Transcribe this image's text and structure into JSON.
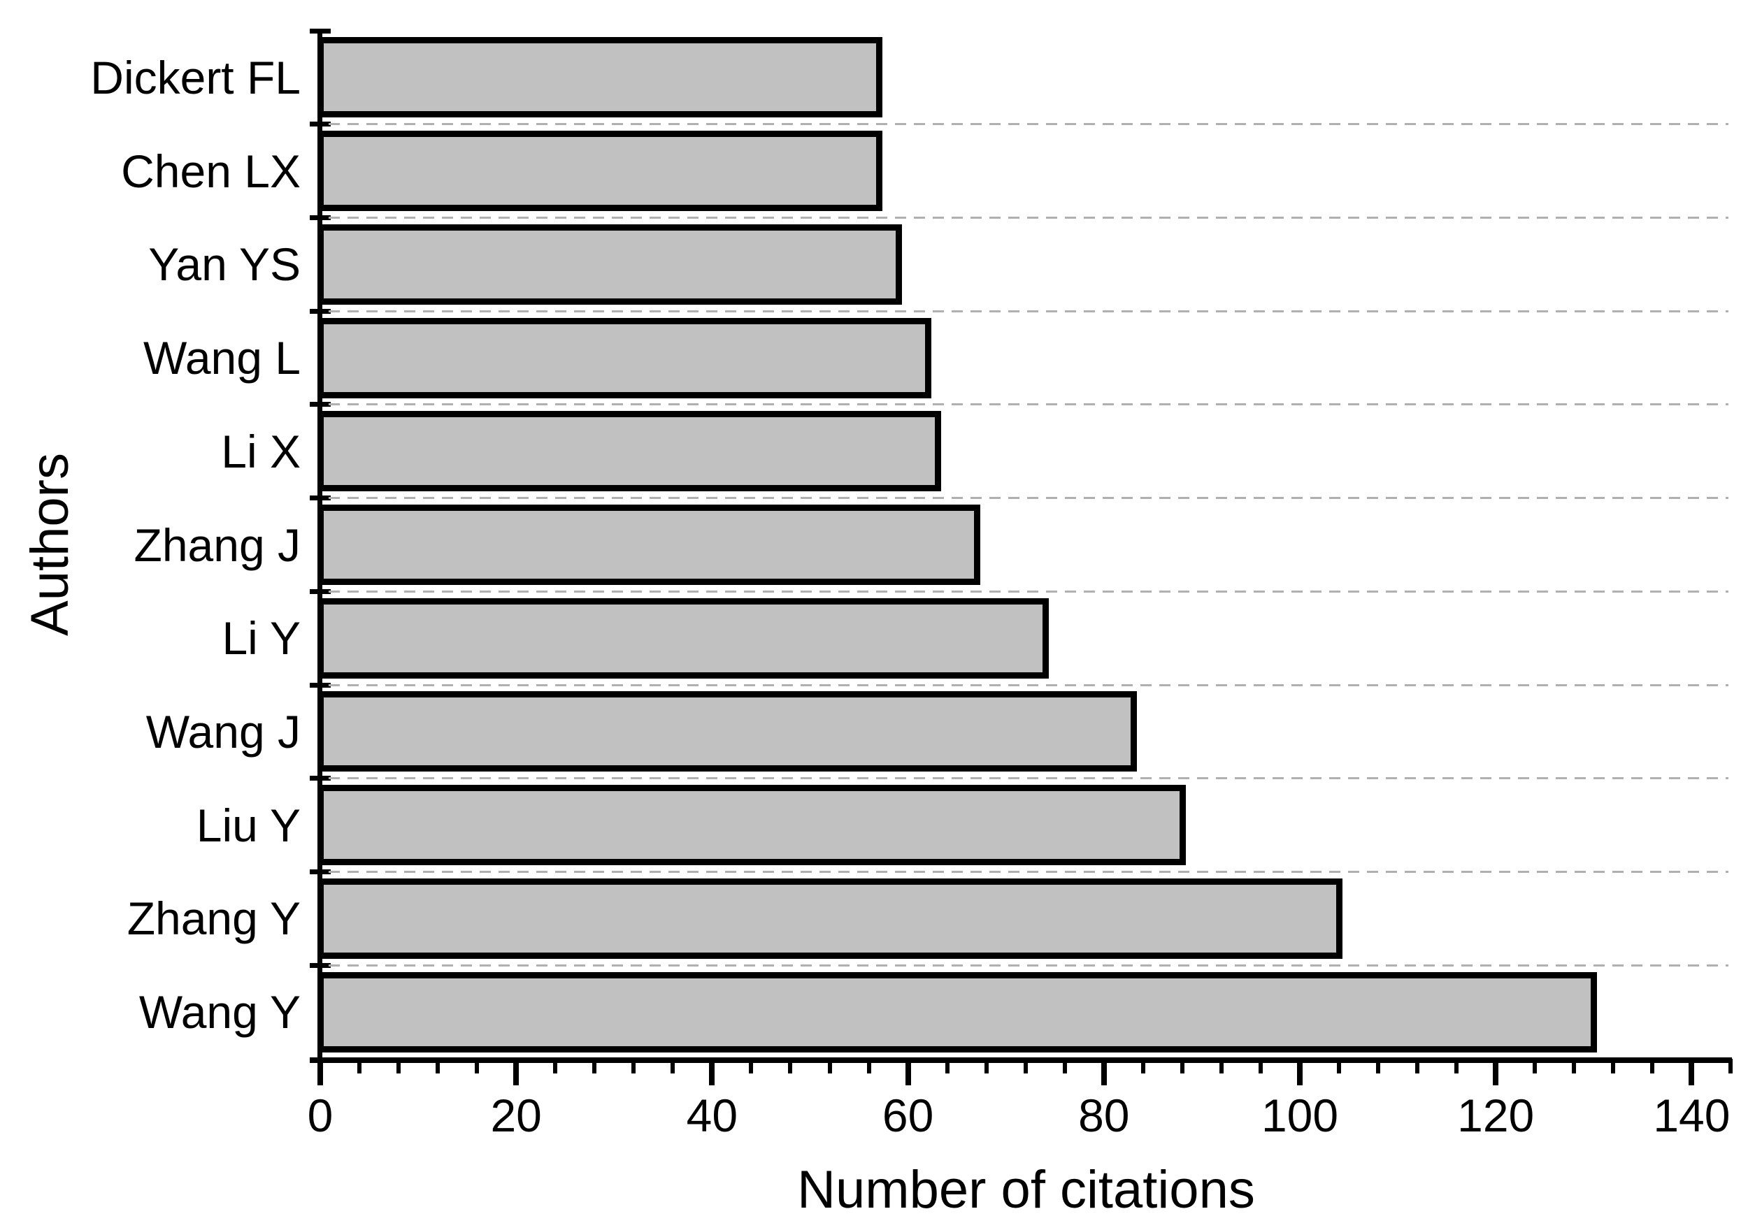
{
  "chart_data": {
    "type": "bar",
    "orientation": "horizontal",
    "title": "",
    "xlabel": "Number of citations",
    "ylabel": "Authors",
    "categories": [
      "Dickert FL",
      "Chen LX",
      "Yan YS",
      "Wang L",
      "Li X",
      "Zhang J",
      "Li Y",
      "Wang J",
      "Liu Y",
      "Zhang Y",
      "Wang Y"
    ],
    "values": [
      57,
      57,
      59,
      62,
      63,
      67,
      74,
      83,
      88,
      104,
      130
    ],
    "x_axis": {
      "min": 0,
      "max": 144,
      "major_step": 20,
      "minor_step": 4,
      "tick_labels": [
        "0",
        "20",
        "40",
        "60",
        "80",
        "100",
        "120",
        "140"
      ]
    },
    "grid": "dashed horizontal lines between category slots",
    "legend": "none",
    "colors": {
      "bar_fill": "#c1c1c1",
      "bar_border": "#000000",
      "axis": "#000000",
      "gridline": "#b0b0b0",
      "text": "#000000",
      "background": "#ffffff"
    }
  }
}
